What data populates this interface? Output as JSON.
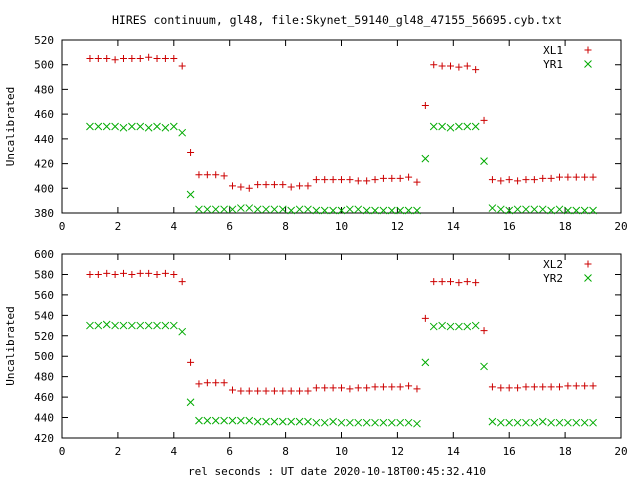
{
  "figure": {
    "title": "HIRES continuum, gl48, file:Skynet_59140_gl48_47155_56695.cyb.txt",
    "xlabel": "rel seconds : UT date 2020-10-18T00:45:32.410"
  },
  "chart_data": [
    {
      "type": "scatter",
      "ylabel": "Uncalibrated",
      "xlim": [
        0,
        20
      ],
      "ylim": [
        380,
        520
      ],
      "xticks": [
        0,
        2,
        4,
        6,
        8,
        10,
        12,
        14,
        16,
        18,
        20
      ],
      "yticks": [
        380,
        400,
        420,
        440,
        460,
        480,
        500,
        520
      ],
      "legend_position": "top-right",
      "series": [
        {
          "name": "XL1",
          "marker": "+",
          "color": "#cc0000",
          "x": [
            1.0,
            1.3,
            1.6,
            1.9,
            2.2,
            2.5,
            2.8,
            3.1,
            3.4,
            3.7,
            4.0,
            4.3,
            4.6,
            4.9,
            5.2,
            5.5,
            5.8,
            6.1,
            6.4,
            6.7,
            7.0,
            7.3,
            7.6,
            7.9,
            8.2,
            8.5,
            8.8,
            9.1,
            9.4,
            9.7,
            10.0,
            10.3,
            10.6,
            10.9,
            11.2,
            11.5,
            11.8,
            12.1,
            12.4,
            12.7,
            13.0,
            13.3,
            13.6,
            13.9,
            14.2,
            14.5,
            14.8,
            15.1,
            15.4,
            15.7,
            16.0,
            16.3,
            16.6,
            16.9,
            17.2,
            17.5,
            17.8,
            18.1,
            18.4,
            18.7,
            19.0
          ],
          "y": [
            505,
            505,
            505,
            504,
            505,
            505,
            505,
            506,
            505,
            505,
            505,
            499,
            429,
            411,
            411,
            411,
            410,
            402,
            401,
            400,
            403,
            403,
            403,
            403,
            401,
            402,
            402,
            407,
            407,
            407,
            407,
            407,
            406,
            406,
            407,
            408,
            408,
            408,
            409,
            405,
            467,
            500,
            499,
            499,
            498,
            499,
            496,
            455,
            407,
            406,
            407,
            406,
            407,
            407,
            408,
            408,
            409,
            409,
            409,
            409,
            409
          ]
        },
        {
          "name": "YR1",
          "marker": "x",
          "color": "#00aa00",
          "x": [
            1.0,
            1.3,
            1.6,
            1.9,
            2.2,
            2.5,
            2.8,
            3.1,
            3.4,
            3.7,
            4.0,
            4.3,
            4.6,
            4.9,
            5.2,
            5.5,
            5.8,
            6.1,
            6.4,
            6.7,
            7.0,
            7.3,
            7.6,
            7.9,
            8.2,
            8.5,
            8.8,
            9.1,
            9.4,
            9.7,
            10.0,
            10.3,
            10.6,
            10.9,
            11.2,
            11.5,
            11.8,
            12.1,
            12.4,
            12.7,
            13.0,
            13.3,
            13.6,
            13.9,
            14.2,
            14.5,
            14.8,
            15.1,
            15.4,
            15.7,
            16.0,
            16.3,
            16.6,
            16.9,
            17.2,
            17.5,
            17.8,
            18.1,
            18.4,
            18.7,
            19.0
          ],
          "y": [
            450,
            450,
            450,
            450,
            449,
            450,
            450,
            449,
            450,
            449,
            450,
            445,
            395,
            383,
            383,
            383,
            383,
            383,
            384,
            384,
            383,
            383,
            383,
            383,
            382,
            383,
            383,
            382,
            382,
            382,
            382,
            383,
            383,
            382,
            382,
            382,
            382,
            382,
            382,
            382,
            424,
            450,
            450,
            449,
            450,
            450,
            450,
            422,
            384,
            383,
            382,
            383,
            383,
            383,
            383,
            382,
            383,
            382,
            382,
            382,
            382
          ]
        }
      ]
    },
    {
      "type": "scatter",
      "ylabel": "Uncalibrated",
      "xlim": [
        0,
        20
      ],
      "ylim": [
        420,
        600
      ],
      "xticks": [
        0,
        2,
        4,
        6,
        8,
        10,
        12,
        14,
        16,
        18,
        20
      ],
      "yticks": [
        420,
        440,
        460,
        480,
        500,
        520,
        540,
        560,
        580,
        600
      ],
      "legend_position": "top-right",
      "series": [
        {
          "name": "XL2",
          "marker": "+",
          "color": "#cc0000",
          "x": [
            1.0,
            1.3,
            1.6,
            1.9,
            2.2,
            2.5,
            2.8,
            3.1,
            3.4,
            3.7,
            4.0,
            4.3,
            4.6,
            4.9,
            5.2,
            5.5,
            5.8,
            6.1,
            6.4,
            6.7,
            7.0,
            7.3,
            7.6,
            7.9,
            8.2,
            8.5,
            8.8,
            9.1,
            9.4,
            9.7,
            10.0,
            10.3,
            10.6,
            10.9,
            11.2,
            11.5,
            11.8,
            12.1,
            12.4,
            12.7,
            13.0,
            13.3,
            13.6,
            13.9,
            14.2,
            14.5,
            14.8,
            15.1,
            15.4,
            15.7,
            16.0,
            16.3,
            16.6,
            16.9,
            17.2,
            17.5,
            17.8,
            18.1,
            18.4,
            18.7,
            19.0
          ],
          "y": [
            580,
            580,
            581,
            580,
            581,
            580,
            581,
            581,
            580,
            581,
            580,
            573,
            494,
            473,
            474,
            474,
            474,
            467,
            466,
            466,
            466,
            466,
            466,
            466,
            466,
            466,
            466,
            469,
            469,
            469,
            469,
            468,
            469,
            469,
            470,
            470,
            470,
            470,
            471,
            468,
            537,
            573,
            573,
            573,
            572,
            573,
            572,
            525,
            470,
            469,
            469,
            469,
            470,
            470,
            470,
            470,
            470,
            471,
            471,
            471,
            471
          ]
        },
        {
          "name": "YR2",
          "marker": "x",
          "color": "#00aa00",
          "x": [
            1.0,
            1.3,
            1.6,
            1.9,
            2.2,
            2.5,
            2.8,
            3.1,
            3.4,
            3.7,
            4.0,
            4.3,
            4.6,
            4.9,
            5.2,
            5.5,
            5.8,
            6.1,
            6.4,
            6.7,
            7.0,
            7.3,
            7.6,
            7.9,
            8.2,
            8.5,
            8.8,
            9.1,
            9.4,
            9.7,
            10.0,
            10.3,
            10.6,
            10.9,
            11.2,
            11.5,
            11.8,
            12.1,
            12.4,
            12.7,
            13.0,
            13.3,
            13.6,
            13.9,
            14.2,
            14.5,
            14.8,
            15.1,
            15.4,
            15.7,
            16.0,
            16.3,
            16.6,
            16.9,
            17.2,
            17.5,
            17.8,
            18.1,
            18.4,
            18.7,
            19.0
          ],
          "y": [
            530,
            530,
            531,
            530,
            530,
            530,
            530,
            530,
            530,
            530,
            530,
            524,
            455,
            437,
            437,
            437,
            437,
            437,
            437,
            437,
            436,
            436,
            436,
            436,
            436,
            436,
            436,
            435,
            435,
            436,
            435,
            435,
            435,
            435,
            435,
            435,
            435,
            435,
            435,
            434,
            494,
            529,
            530,
            529,
            529,
            529,
            530,
            490,
            436,
            435,
            435,
            435,
            435,
            435,
            436,
            435,
            435,
            435,
            435,
            435,
            435
          ]
        }
      ]
    }
  ]
}
